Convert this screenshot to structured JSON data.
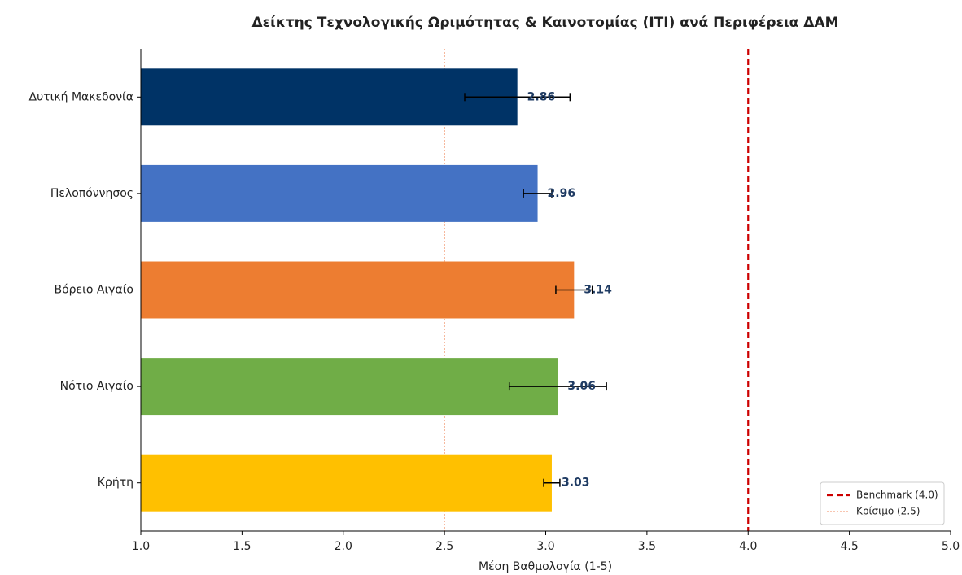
{
  "chart_data": {
    "type": "barh",
    "title": "Δείκτης Τεχνολογικής Ωριμότητας & Καινοτομίας (ΙΤΙ) ανά Περιφέρεια ΔΑΜ",
    "xlabel": "Μέση Βαθμολογία (1-5)",
    "categories": [
      "Δυτική Μακεδονία",
      "Πελοπόννησος",
      "Βόρειο Αιγαίο",
      "Νότιο Αιγαίο",
      "Κρήτη"
    ],
    "values": [
      2.86,
      2.96,
      3.14,
      3.06,
      3.03
    ],
    "errors": [
      0.26,
      0.07,
      0.09,
      0.24,
      0.04
    ],
    "colors": [
      "#003366",
      "#4472c4",
      "#ed7d31",
      "#70ad47",
      "#ffc000"
    ],
    "xlim": [
      1.0,
      5.0
    ],
    "xticks": [
      {
        "value": 1.0,
        "label": "1.0"
      },
      1.5,
      {
        "value": 2.0,
        "label": "2.0"
      },
      2.5,
      {
        "value": 3.0,
        "label": "3.0"
      },
      3.5,
      {
        "value": 4.0,
        "label": "4.0"
      },
      4.5,
      {
        "value": 5.0,
        "label": "5.0"
      }
    ],
    "reference_lines": [
      {
        "label": "Benchmark (4.0)",
        "value": 4.0,
        "color": "#cc0000",
        "style": "dashed"
      },
      {
        "label": "Κρίσιμο (2.5)",
        "value": 2.5,
        "color": "#f4a582",
        "style": "dotted"
      }
    ],
    "legend": "lower right"
  }
}
